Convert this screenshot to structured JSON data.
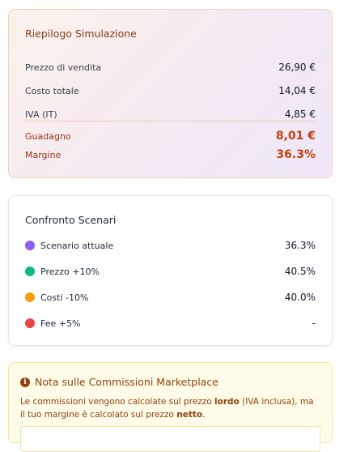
{
  "summary": {
    "title": "Riepilogo Simulazione",
    "rows": [
      {
        "label": "Prezzo di vendita",
        "value": "26,90 €"
      },
      {
        "label": "Costo totale",
        "value": "14,04 €"
      },
      {
        "label": "IVA (IT)",
        "value": "4,85 €"
      }
    ],
    "profit": {
      "label": "Guadagno",
      "value": "8,01 €"
    },
    "margin": {
      "label": "Margine",
      "value": "36.3%"
    }
  },
  "scenarios": {
    "title": "Confronto Scenari",
    "items": [
      {
        "name": "Scenario attuale",
        "value": "36.3%",
        "color": "#8b5cf6"
      },
      {
        "name": "Prezzo +10%",
        "value": "40.5%",
        "color": "#10b981"
      },
      {
        "name": "Costi -10%",
        "value": "40.0%",
        "color": "#f59e0b"
      },
      {
        "name": "Fee +5%",
        "value": "-",
        "color": "#ef4444"
      }
    ]
  },
  "note": {
    "icon": "info-icon",
    "title": "Nota sulle Commissioni Marketplace",
    "body_part1": "Le commissioni vengono calcolate sul prezzo ",
    "body_bold1": "lordo",
    "body_part2": " (IVA inclusa), ma il tuo margine è calcolato sul prezzo ",
    "body_bold2": "netto",
    "body_part3": "."
  }
}
